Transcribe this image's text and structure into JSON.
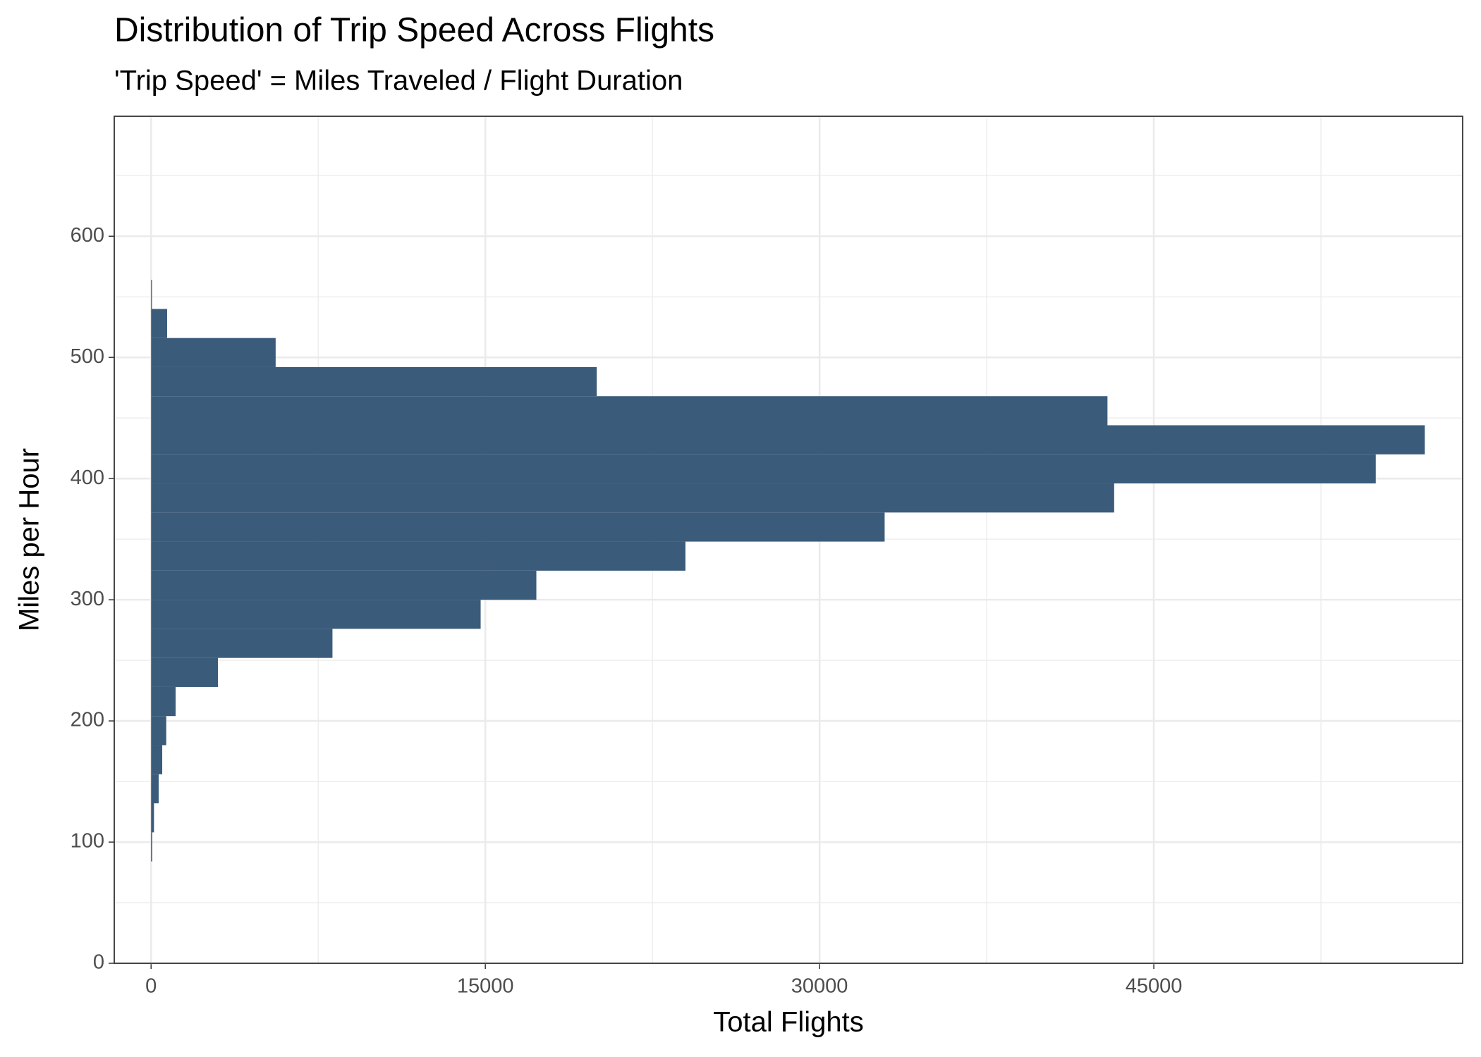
{
  "chart_data": {
    "type": "histogram",
    "orientation": "horizontal",
    "title": "Distribution of Trip Speed Across Flights",
    "subtitle": "'Trip Speed' = Miles Traveled / Flight Duration",
    "x_label": "Total Flights",
    "y_label": "Miles per Hour",
    "bins": [
      84,
      108,
      132,
      156,
      180,
      204,
      228,
      252,
      276,
      300,
      324,
      348,
      372,
      396,
      420,
      444,
      468,
      492,
      516,
      540,
      564
    ],
    "values": [
      50,
      130,
      340,
      500,
      680,
      1100,
      3000,
      8140,
      14790,
      17290,
      23980,
      32920,
      43220,
      54960,
      57160,
      42920,
      20000,
      5590,
      720,
      40
    ],
    "color": "#3b5b7b",
    "xlim": [
      -1653,
      58860
    ],
    "xticks": [
      0,
      15000,
      30000,
      45000
    ],
    "ylim": [
      0,
      699
    ],
    "yticks": [
      0,
      100,
      200,
      300,
      400,
      500,
      600
    ],
    "grid": true,
    "minor_grid": true
  }
}
